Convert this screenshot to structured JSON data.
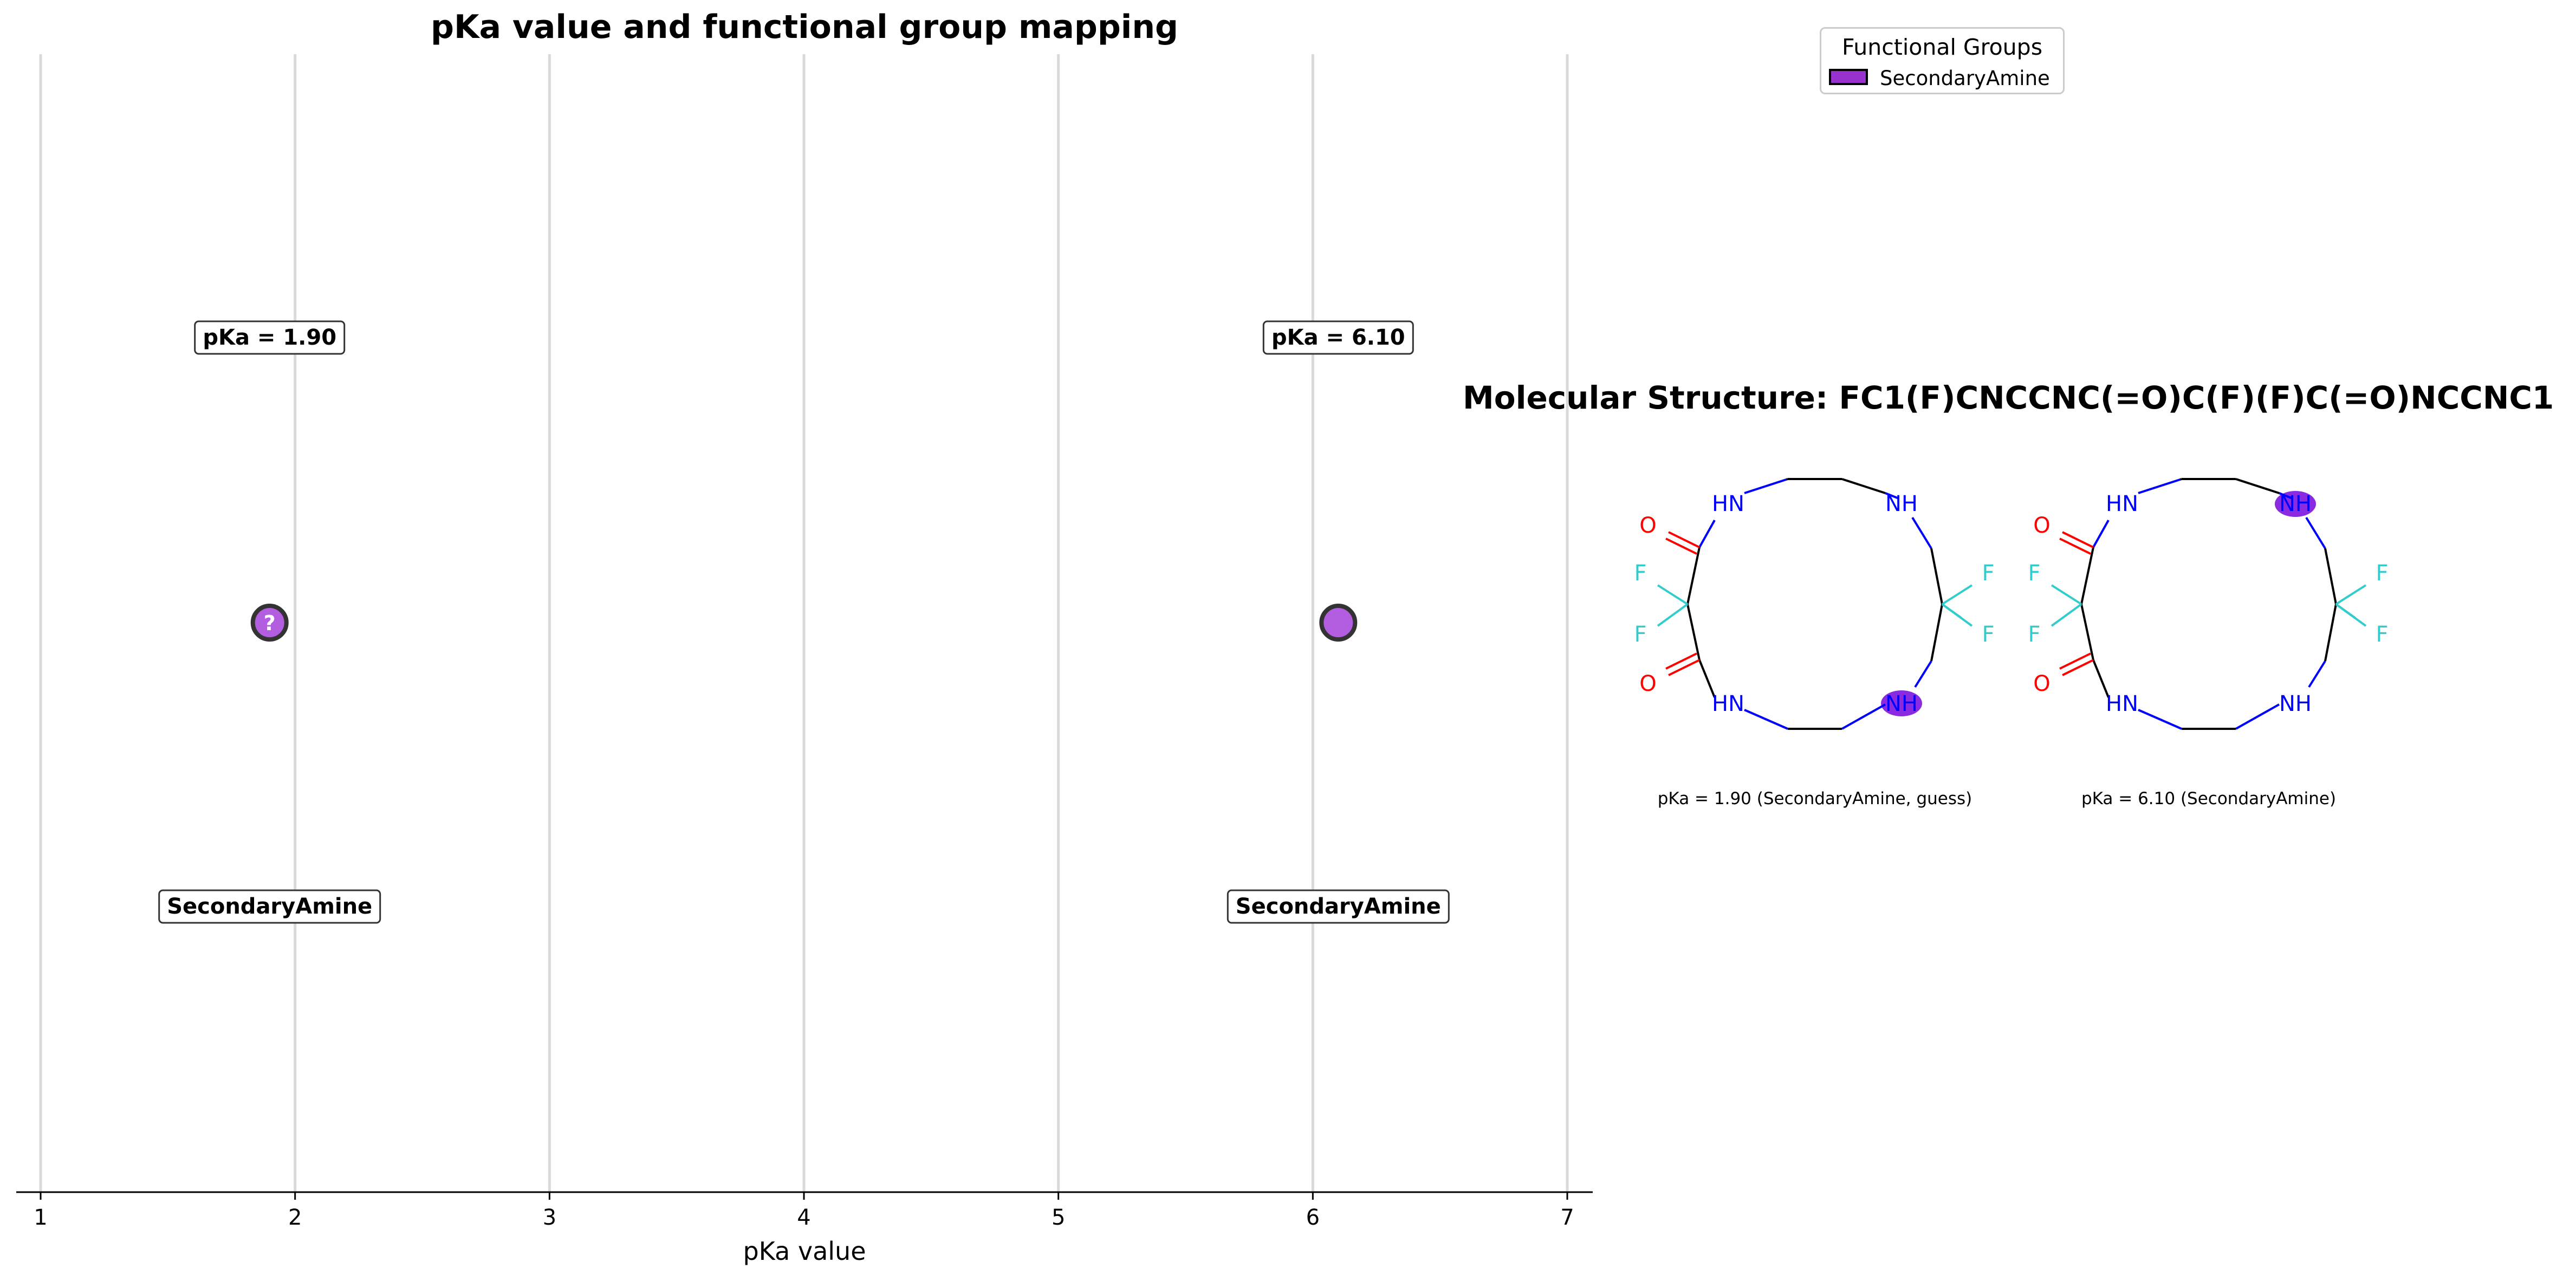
{
  "chart_data": {
    "type": "scatter",
    "title": "pKa value and functional group mapping",
    "xlabel": "pKa value",
    "ylabel": "",
    "xlim": [
      0.9,
      7.1
    ],
    "xticks": [
      "1",
      "2",
      "3",
      "4",
      "5",
      "6",
      "7"
    ],
    "grid": "vertical",
    "points": [
      {
        "x": 1.9,
        "pka_label": "pKa = 1.90",
        "group_label": "SecondaryAmine",
        "marker_text": "?"
      },
      {
        "x": 6.1,
        "pka_label": "pKa = 6.10",
        "group_label": "SecondaryAmine",
        "marker_text": ""
      }
    ],
    "legend": {
      "title": "Functional Groups",
      "position": "upper-right",
      "entries": [
        "SecondaryAmine"
      ]
    }
  },
  "colors": {
    "marker_fill": "#b35ee0",
    "legend_fill": "#9932cc",
    "highlight": "#8a2be2",
    "grid": "#d9d9d9",
    "nitrogen": "#0000ff",
    "oxygen": "#ff0000",
    "fluorine": "#33cccc"
  },
  "molecule": {
    "title": "Molecular Structure: FC1(F)CNCCNC(=O)C(F)(F)C(=O)NCCNC1",
    "captions": [
      "pKa = 1.90 (SecondaryAmine, guess)",
      "pKa = 6.10 (SecondaryAmine)"
    ],
    "atoms": {
      "hn": "HN",
      "nh": "NH",
      "o": "O",
      "f": "F"
    }
  }
}
